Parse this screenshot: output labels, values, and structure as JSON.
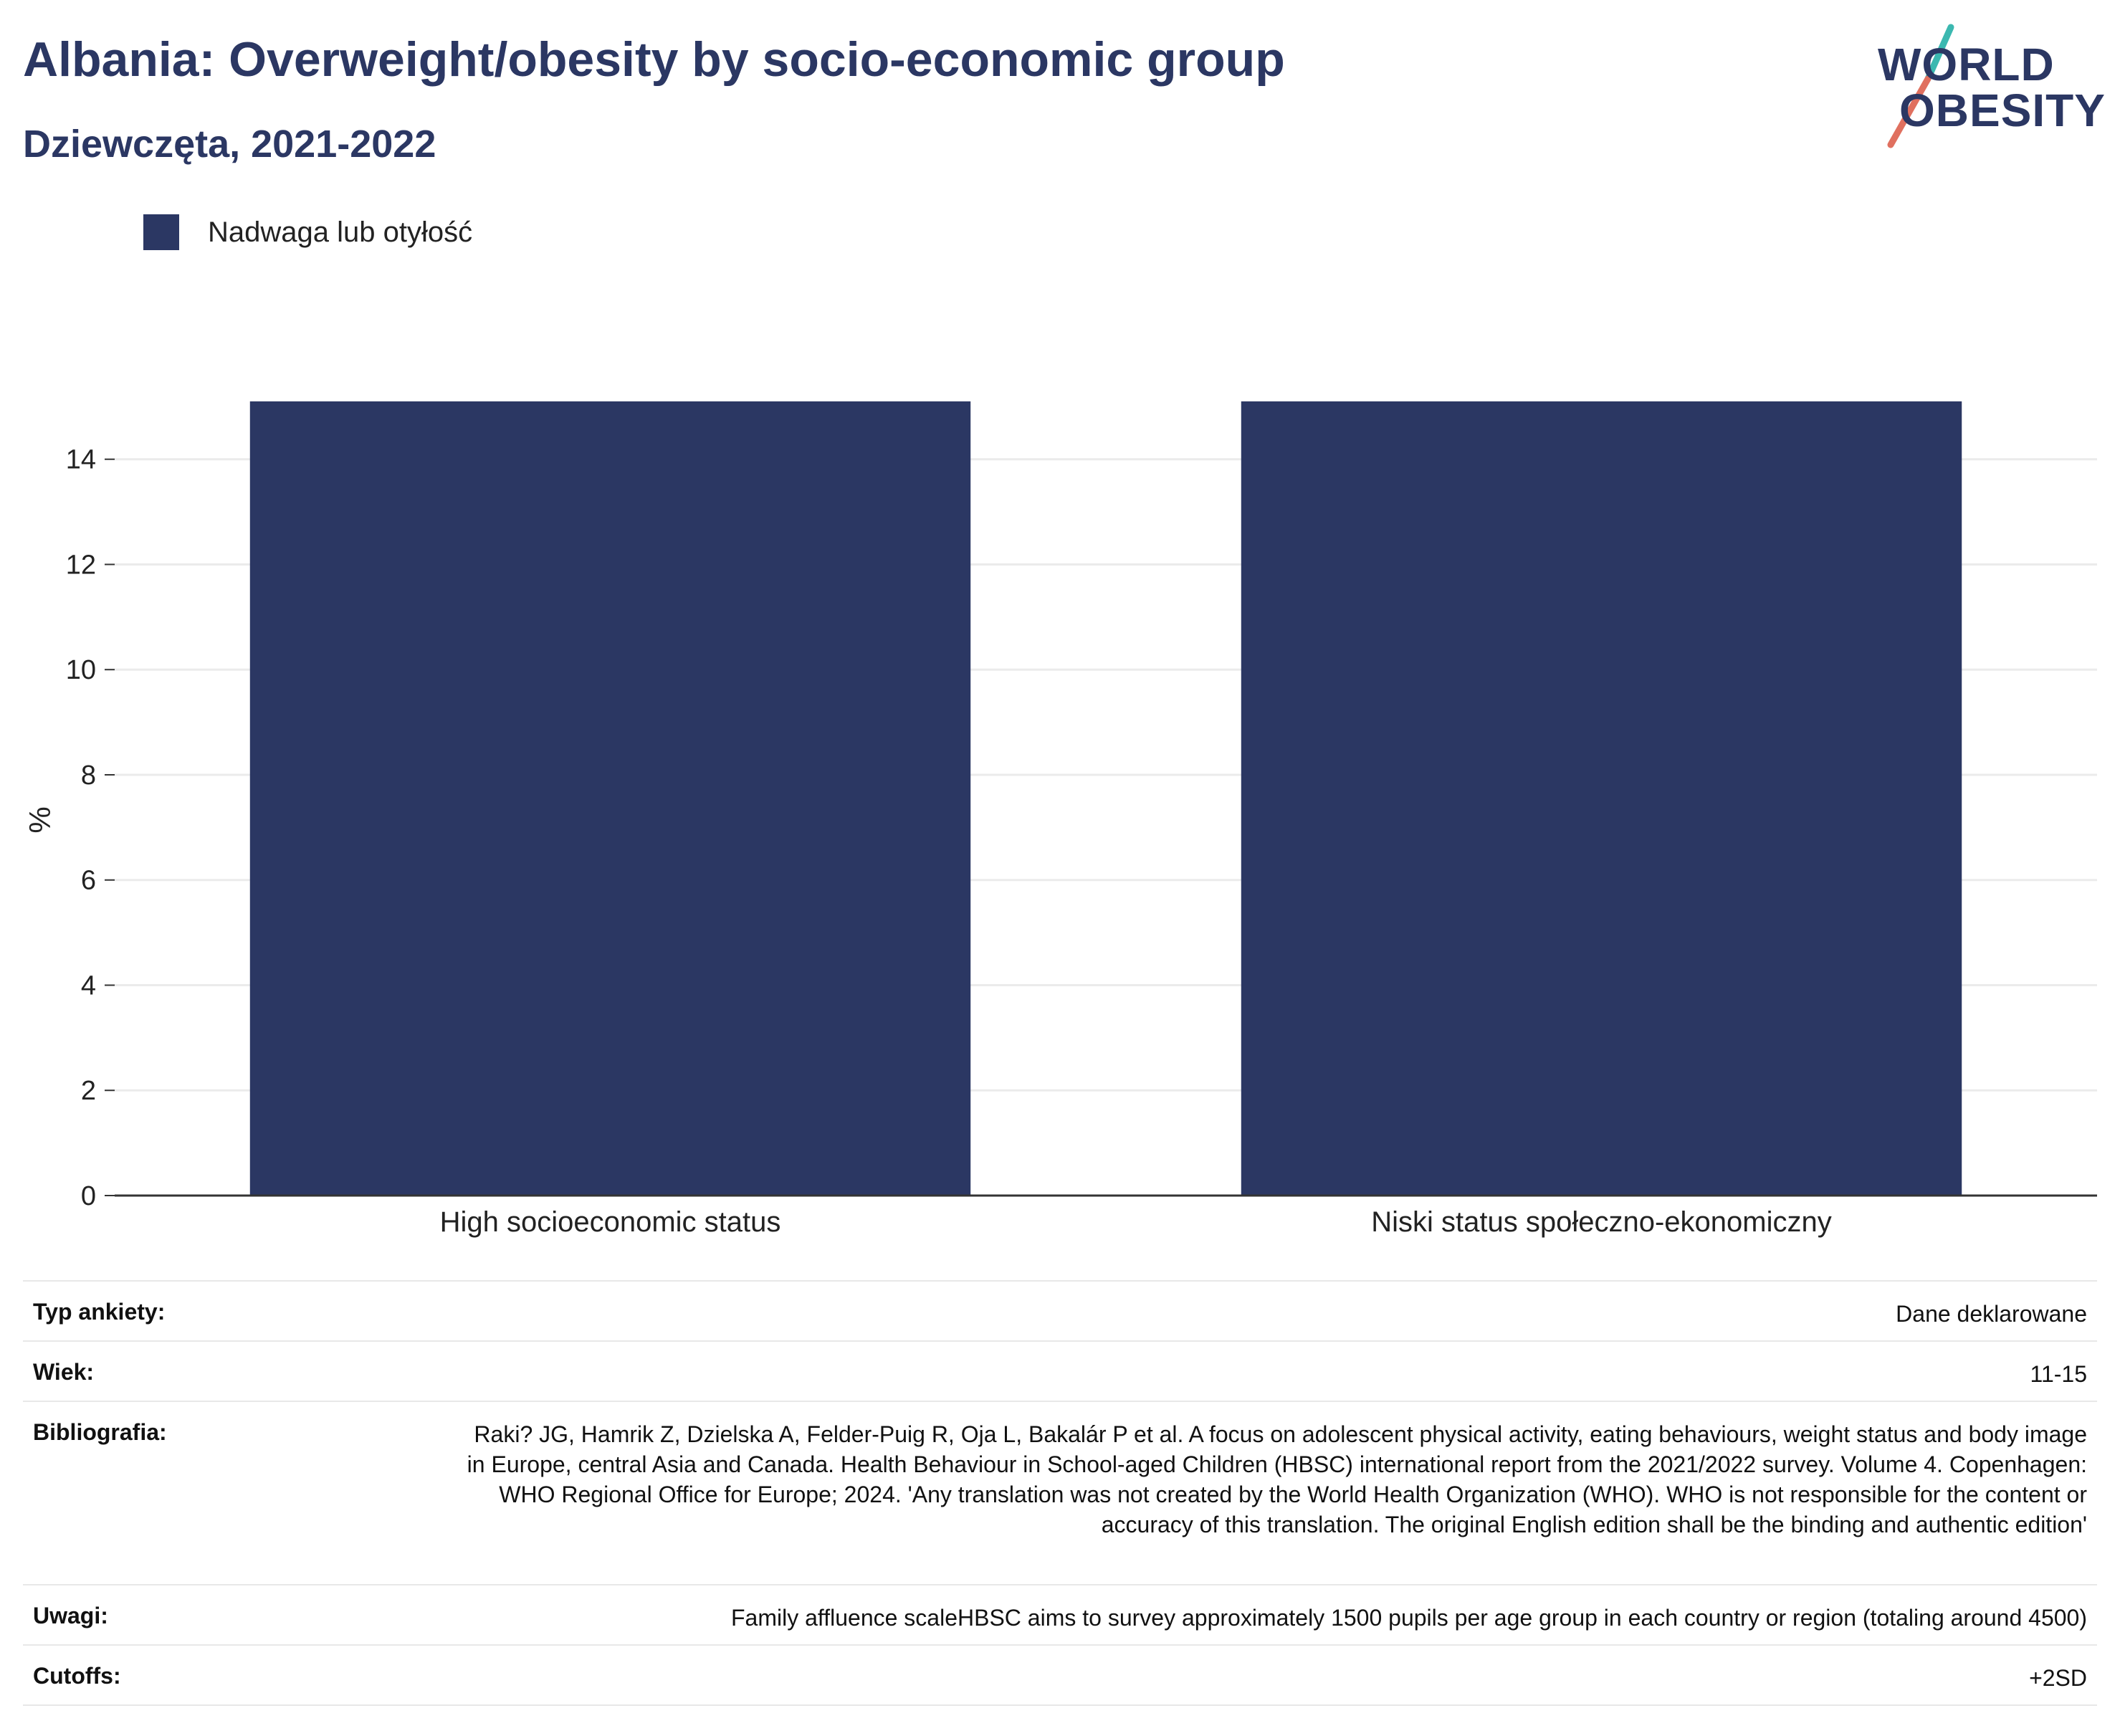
{
  "header": {
    "title": "Albania: Overweight/obesity by socio-economic group",
    "subtitle": "Dziewczęta, 2021-2022"
  },
  "logo": {
    "line1": "WORLD",
    "line2": "OBESITY",
    "colors": {
      "text": "#2b3763",
      "slash_top": "#3bb8b0",
      "slash_bottom": "#e0705f"
    }
  },
  "legend": {
    "label": "Nadwaga lub otyłość",
    "color": "#2b3763"
  },
  "chart_data": {
    "type": "bar",
    "categories": [
      "High socioeconomic status",
      "Niski status społeczno-ekonomiczny"
    ],
    "series": [
      {
        "name": "Nadwaga lub otyłość",
        "values": [
          15.1,
          15.1
        ],
        "color": "#2b3763"
      }
    ],
    "ylabel": "%",
    "ylim": [
      0,
      15.1
    ],
    "yticks": [
      0,
      2,
      4,
      6,
      8,
      10,
      12,
      14
    ],
    "grid": true,
    "legend_position": "top-left"
  },
  "meta": {
    "rows": [
      {
        "key": "Typ ankiety:",
        "value": "Dane deklarowane"
      },
      {
        "key": "Wiek:",
        "value": "11-15"
      },
      {
        "key": "Bibliografia:",
        "value": "Raki? JG, Hamrik Z, Dzielska A, Felder-Puig R, Oja L, Bakalár P et al. A focus on adolescent physical activity, eating behaviours, weight status and body image in Europe, central Asia and Canada. Health Behaviour in School-aged Children (HBSC) international report from the 2021/2022 survey. Volume 4. Copenhagen: WHO Regional Office for Europe; 2024. 'Any translation was not created by the World Health Organization (WHO). WHO is not responsible for the content or accuracy of this translation. The original English edition shall be the binding and authentic edition'"
      },
      {
        "key": "Uwagi:",
        "value": "Family affluence scaleHBSC aims to survey approximately 1500 pupils per age group in each country or region (totaling around 4500)"
      },
      {
        "key": "Cutoffs:",
        "value": "+2SD"
      }
    ]
  }
}
